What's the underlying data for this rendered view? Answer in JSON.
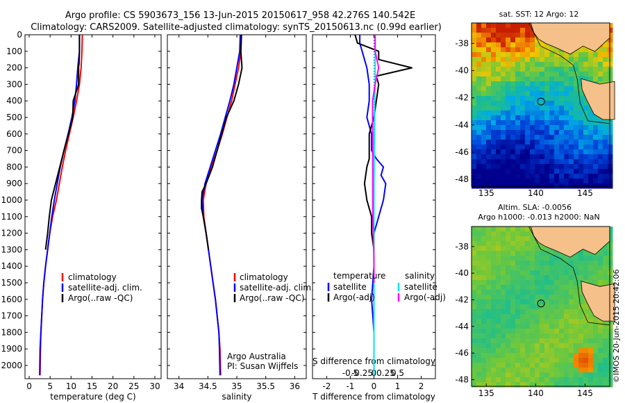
{
  "header": {
    "line1": "Argo profile: CS 5903673_156 13-Jun-2015 20150617_958 42.276S 140.542E",
    "line2": "Climatology: CARS2009. Satellite-adjusted climatology: synTS_20150613.nc (0.99d earlier)"
  },
  "depth_ticks": [
    0,
    100,
    200,
    300,
    400,
    500,
    600,
    700,
    800,
    900,
    1000,
    1100,
    1200,
    1300,
    1400,
    1500,
    1600,
    1700,
    1800,
    1900,
    2000
  ],
  "colors": {
    "climatology": "#ff0000",
    "satellite": "#0000ff",
    "argo": "#000000",
    "sat_salinity": "#00e5ee",
    "argo_salinity": "#ff00ff",
    "land": "#f5c08a"
  },
  "chart_data": [
    {
      "type": "line",
      "name": "temperature-profile",
      "xlabel": "temperature (deg C)",
      "ylabel": "",
      "xlim": [
        -1,
        31.5
      ],
      "ylim": [
        2080,
        0
      ],
      "xticks": [
        0,
        5,
        10,
        15,
        20,
        25,
        30
      ],
      "legend": {
        "placement": "lower-left",
        "entries": [
          "climatology",
          "satellite-adj. clim.",
          "Argo(..raw -QC)"
        ]
      },
      "series": [
        {
          "name": "climatology",
          "color": "#ff0000",
          "x": [
            12.7,
            12.6,
            12.4,
            12.0,
            11.3,
            10.5,
            9.6,
            8.7,
            7.9,
            7.2,
            6.5,
            5.6,
            4.9,
            4.4,
            3.9,
            3.5,
            3.2,
            3.0,
            2.8,
            2.7,
            2.6
          ],
          "y": [
            0,
            100,
            200,
            300,
            400,
            500,
            600,
            700,
            800,
            900,
            1000,
            1100,
            1200,
            1300,
            1400,
            1500,
            1600,
            1700,
            1800,
            1900,
            2060
          ]
        },
        {
          "name": "satellite-adj. clim.",
          "color": "#0000ff",
          "x": [
            12.0,
            12.0,
            11.6,
            11.3,
            10.9,
            10.2,
            9.3,
            8.3,
            7.4,
            6.7,
            6.0,
            5.4,
            4.9,
            4.4,
            3.9,
            3.5,
            3.2,
            3.0,
            2.8,
            2.6,
            2.5
          ],
          "y": [
            0,
            100,
            200,
            300,
            400,
            500,
            600,
            700,
            800,
            900,
            1000,
            1100,
            1200,
            1300,
            1400,
            1500,
            1600,
            1700,
            1800,
            1900,
            2060
          ]
        },
        {
          "name": "Argo(..raw -QC)",
          "color": "#000000",
          "x": [
            12.0,
            12.0,
            11.9,
            11.8,
            11.8,
            10.5,
            10.4,
            9.4,
            8.3,
            7.3,
            6.3,
            5.3,
            4.8,
            4.4,
            3.9
          ],
          "y": [
            0,
            100,
            180,
            190,
            300,
            400,
            500,
            600,
            700,
            800,
            900,
            1000,
            1100,
            1200,
            1300
          ]
        }
      ]
    },
    {
      "type": "line",
      "name": "salinity-profile",
      "xlabel": "salinity",
      "ylabel": "",
      "xlim": [
        33.8,
        36.2
      ],
      "ylim": [
        2080,
        0
      ],
      "xticks": [
        34,
        34.5,
        35,
        35.5,
        36
      ],
      "legend": {
        "placement": "lower-right",
        "entries": [
          "climatology",
          "satellite-adj. clim.",
          "Argo(..raw -QC)"
        ]
      },
      "annotation": [
        "Argo Australia",
        "PI: Susan Wijffels"
      ],
      "series": [
        {
          "name": "climatology",
          "color": "#ff0000",
          "x": [
            35.08,
            35.07,
            35.03,
            34.97,
            34.91,
            34.83,
            34.75,
            34.66,
            34.56,
            34.47,
            34.42,
            34.43,
            34.47,
            34.51,
            34.55,
            34.59,
            34.63,
            34.66,
            34.69,
            34.71,
            34.72
          ],
          "y": [
            0,
            100,
            200,
            300,
            400,
            500,
            600,
            700,
            800,
            900,
            1000,
            1100,
            1200,
            1300,
            1400,
            1500,
            1600,
            1700,
            1800,
            1900,
            2060
          ]
        },
        {
          "name": "satellite-adj. clim.",
          "color": "#0000ff",
          "x": [
            35.06,
            35.05,
            35.0,
            34.95,
            34.88,
            34.8,
            34.72,
            34.63,
            34.54,
            34.45,
            34.4,
            34.42,
            34.47,
            34.51,
            34.55,
            34.59,
            34.63,
            34.66,
            34.69,
            34.7,
            34.71
          ],
          "y": [
            0,
            100,
            200,
            300,
            400,
            500,
            600,
            700,
            800,
            900,
            1000,
            1100,
            1200,
            1300,
            1400,
            1500,
            1600,
            1700,
            1800,
            1900,
            2060
          ]
        },
        {
          "name": "Argo(..raw -QC)",
          "color": "#000000",
          "x": [
            35.08,
            35.07,
            35.09,
            35.03,
            34.95,
            34.82,
            34.74,
            34.66,
            34.58,
            34.47,
            34.4,
            34.39,
            34.39,
            34.42,
            34.47,
            34.51
          ],
          "y": [
            0,
            100,
            200,
            300,
            400,
            500,
            600,
            700,
            800,
            900,
            950,
            1000,
            1050,
            1100,
            1200,
            1300
          ]
        }
      ]
    },
    {
      "type": "line",
      "name": "difference-profile",
      "xlabel": "T difference from climatology",
      "xlabel_top": "S difference from climatology",
      "ylabel": "",
      "xlim": [
        -2.6,
        2.6
      ],
      "ylim": [
        2080,
        0
      ],
      "xticks": [
        -2,
        -1,
        0,
        1,
        2
      ],
      "xtick_labels": [
        "-2",
        "-1",
        "0",
        "1",
        "2"
      ],
      "sticks": [
        -0.5,
        -0.25,
        0,
        0.25,
        0.5
      ],
      "stick_labels": [
        "-0.5",
        "-0.25",
        "0",
        "0.25",
        "0.5"
      ],
      "legend": {
        "placement": "lower",
        "entries": [
          "temperature",
          "satellite",
          "Argo(-adj)",
          "salinity",
          "satellite",
          "Argo(-adj)"
        ]
      },
      "series": [
        {
          "name": "satellite",
          "color": "#0000ff",
          "x": [
            -0.6,
            -0.6,
            -0.5,
            -0.3,
            -0.2,
            -0.2,
            -0.3,
            -0.1,
            -0.1,
            0.1,
            0.4,
            0.3,
            0.5,
            0.4,
            0.2,
            0.0,
            0.0,
            -0.1,
            0.0,
            0.0,
            0.0
          ],
          "y": [
            0,
            50,
            100,
            200,
            300,
            400,
            500,
            600,
            700,
            750,
            800,
            850,
            900,
            1000,
            1100,
            1200,
            1400,
            1600,
            1800,
            1900,
            2060
          ]
        },
        {
          "name": "Argo(-adj)",
          "color": "#000000",
          "x": [
            -0.8,
            -0.7,
            0.2,
            0.2,
            1.6,
            0.1,
            0.2,
            0.1,
            0.0,
            -0.2,
            -0.2,
            -0.2,
            -0.3,
            -0.4,
            -0.3,
            -0.1,
            -0.1,
            0.0,
            0.0,
            0.0
          ],
          "y": [
            0,
            50,
            100,
            150,
            200,
            250,
            300,
            400,
            500,
            600,
            700,
            750,
            800,
            900,
            1000,
            1100,
            1200,
            1300,
            1600,
            1700
          ]
        },
        {
          "name": "satellite",
          "color": "#00e5ee",
          "x": [
            0.05,
            0.05,
            0.05,
            0.05,
            0.03,
            0.02,
            0.02,
            0.01,
            0.01,
            0.0,
            0.0,
            0.0,
            0.0,
            0.0,
            0.0,
            0.0
          ],
          "y": [
            0,
            100,
            200,
            300,
            400,
            500,
            600,
            700,
            800,
            900,
            1000,
            1200,
            1400,
            1600,
            1800,
            2060
          ]
        },
        {
          "name": "Argo(-adj)",
          "color": "#ff00ff",
          "x": [
            0.05,
            0.05,
            0.2,
            0.05,
            -0.06,
            -0.06,
            -0.05,
            -0.05,
            -0.05,
            -0.05,
            -0.05,
            -0.05,
            -0.03,
            -0.01,
            0.0,
            0.0
          ],
          "y": [
            0,
            100,
            200,
            300,
            400,
            500,
            600,
            700,
            800,
            900,
            1000,
            1100,
            1200,
            1300,
            1400,
            1500
          ]
        }
      ]
    },
    {
      "type": "heatmap",
      "name": "sst-map",
      "title": "sat. SST: 12 Argo: 12",
      "xlim": [
        133.5,
        147.5
      ],
      "ylim": [
        -48.5,
        -36.5
      ],
      "xticks": [
        135,
        140,
        145
      ],
      "yticks": [
        -38,
        -40,
        -42,
        -44,
        -46,
        -48
      ],
      "argo_position": {
        "lon": 140.542,
        "lat": -42.276
      }
    },
    {
      "type": "heatmap",
      "name": "sla-map",
      "title": "Altim. SLA: -0.0056",
      "subtitle": "Argo h1000: -0.013 h2000: NaN",
      "xlim": [
        133.5,
        147.5
      ],
      "ylim": [
        -48.5,
        -36.5
      ],
      "xticks": [
        135,
        140,
        145
      ],
      "yticks": [
        -38,
        -40,
        -42,
        -44,
        -46,
        -48
      ],
      "argo_position": {
        "lon": 140.542,
        "lat": -42.276
      }
    }
  ],
  "credit": "©IMOS 20-Jun-2015 20:42:06"
}
